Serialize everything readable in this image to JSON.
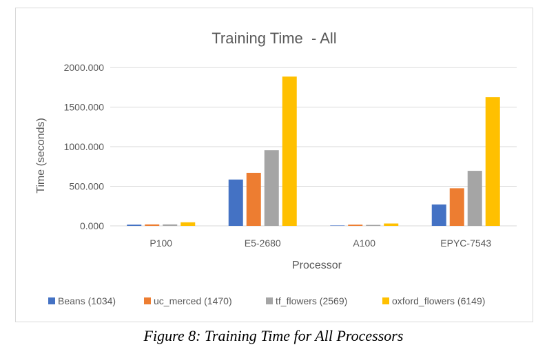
{
  "figure": {
    "caption": "Figure 8: Training Time for All Processors"
  },
  "chart_data": {
    "type": "bar",
    "title": "Training Time  - All",
    "xlabel": "Processor",
    "ylabel": "Time (seconds)",
    "categories": [
      "P100",
      "E5-2680",
      "A100",
      "EPYC-7543"
    ],
    "ylim": [
      0,
      2000
    ],
    "yticks": [
      0,
      500,
      1000,
      1500,
      2000
    ],
    "ytick_labels": [
      "0.000",
      "500.000",
      "1000.000",
      "1500.000",
      "2000.000"
    ],
    "grid": true,
    "legend_position": "bottom",
    "series": [
      {
        "name": "Beans (1034)",
        "color": "#4472c4",
        "values": [
          15,
          585,
          5,
          270
        ]
      },
      {
        "name": "uc_merced (1470)",
        "color": "#ed7d31",
        "values": [
          18,
          670,
          15,
          475
        ]
      },
      {
        "name": "tf_flowers (2569)",
        "color": "#a5a5a5",
        "values": [
          18,
          955,
          12,
          695
        ]
      },
      {
        "name": "oxford_flowers (6149)",
        "color": "#ffc000",
        "values": [
          45,
          1885,
          30,
          1625
        ]
      }
    ]
  }
}
